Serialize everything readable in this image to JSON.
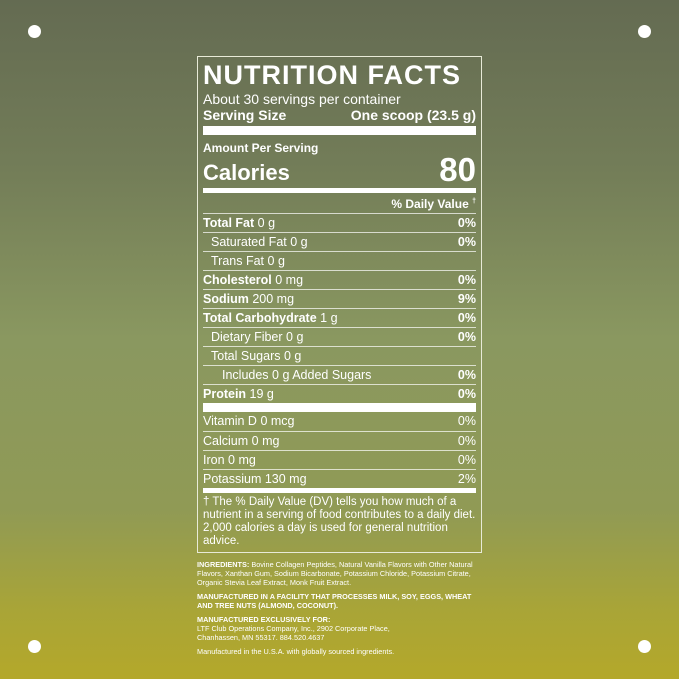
{
  "label": {
    "title": "NUTRITION FACTS",
    "servings": "About 30 servings per container",
    "serving_size_label": "Serving Size",
    "serving_size_value": "One scoop (23.5 g)",
    "amount_per_serving": "Amount Per Serving",
    "calories_label": "Calories",
    "calories_value": "80",
    "dv_header": "% Daily Value",
    "dv_mark": "†",
    "rows": [
      {
        "name": "Total Fat",
        "amount": "0 g",
        "dv": "0%",
        "bold": true,
        "indent": 0
      },
      {
        "name": "Saturated Fat",
        "amount": "0 g",
        "dv": "0%",
        "bold": false,
        "indent": 1
      },
      {
        "name": "Trans Fat",
        "amount": "0 g",
        "dv": "",
        "bold": false,
        "indent": 1
      },
      {
        "name": "Cholesterol",
        "amount": "0 mg",
        "dv": "0%",
        "bold": true,
        "indent": 0
      },
      {
        "name": "Sodium",
        "amount": "200 mg",
        "dv": "9%",
        "bold": true,
        "indent": 0
      },
      {
        "name": "Total Carbohydrate",
        "amount": "1 g",
        "dv": "0%",
        "bold": true,
        "indent": 0
      },
      {
        "name": "Dietary Fiber",
        "amount": "0 g",
        "dv": "0%",
        "bold": false,
        "indent": 1
      },
      {
        "name": "Total Sugars",
        "amount": "0 g",
        "dv": "",
        "bold": false,
        "indent": 1
      },
      {
        "name": "Includes",
        "amount": "0 g Added Sugars",
        "dv": "0%",
        "bold": false,
        "indent": 2
      },
      {
        "name": "Protein",
        "amount": "19 g",
        "dv": "0%",
        "bold": true,
        "indent": 0
      }
    ],
    "vitamins": [
      {
        "name": "Vitamin D",
        "amount": "0 mcg",
        "dv": "0%"
      },
      {
        "name": "Calcium",
        "amount": "0 mg",
        "dv": "0%"
      },
      {
        "name": "Iron",
        "amount": "0 mg",
        "dv": "0%"
      },
      {
        "name": "Potassium",
        "amount": "130 mg",
        "dv": "2%"
      }
    ],
    "footnote": "† The % Daily Value (DV) tells you how much of a nutrient in a serving of food contributes to a daily diet. 2,000 calories a day is used for general nutrition advice."
  },
  "ingredients_label": "INGREDIENTS:",
  "ingredients": "Bovine Collagen Peptides, Natural Vanilla Flavors with Other Natural Flavors, Xanthan Gum, Sodium Bicarbonate, Potassium Chloride, Potassium Citrate, Organic Stevia Leaf Extract, Monk Fruit Extract.",
  "allergen": "MANUFACTURED IN A FACILITY THAT PROCESSES MILK, SOY, EGGS, WHEAT AND TREE NUTS (ALMOND, COCONUT).",
  "manufacturer_label": "MANUFACTURED EXCLUSIVELY FOR:",
  "manufacturer_line1": "LTF Club Operations Company, Inc., 2902 Corporate Place,",
  "manufacturer_line2": "Chanhassen, MN 55317. 884.520.4637",
  "origin": "Manufactured in the U.S.A. with globally sourced ingredients."
}
